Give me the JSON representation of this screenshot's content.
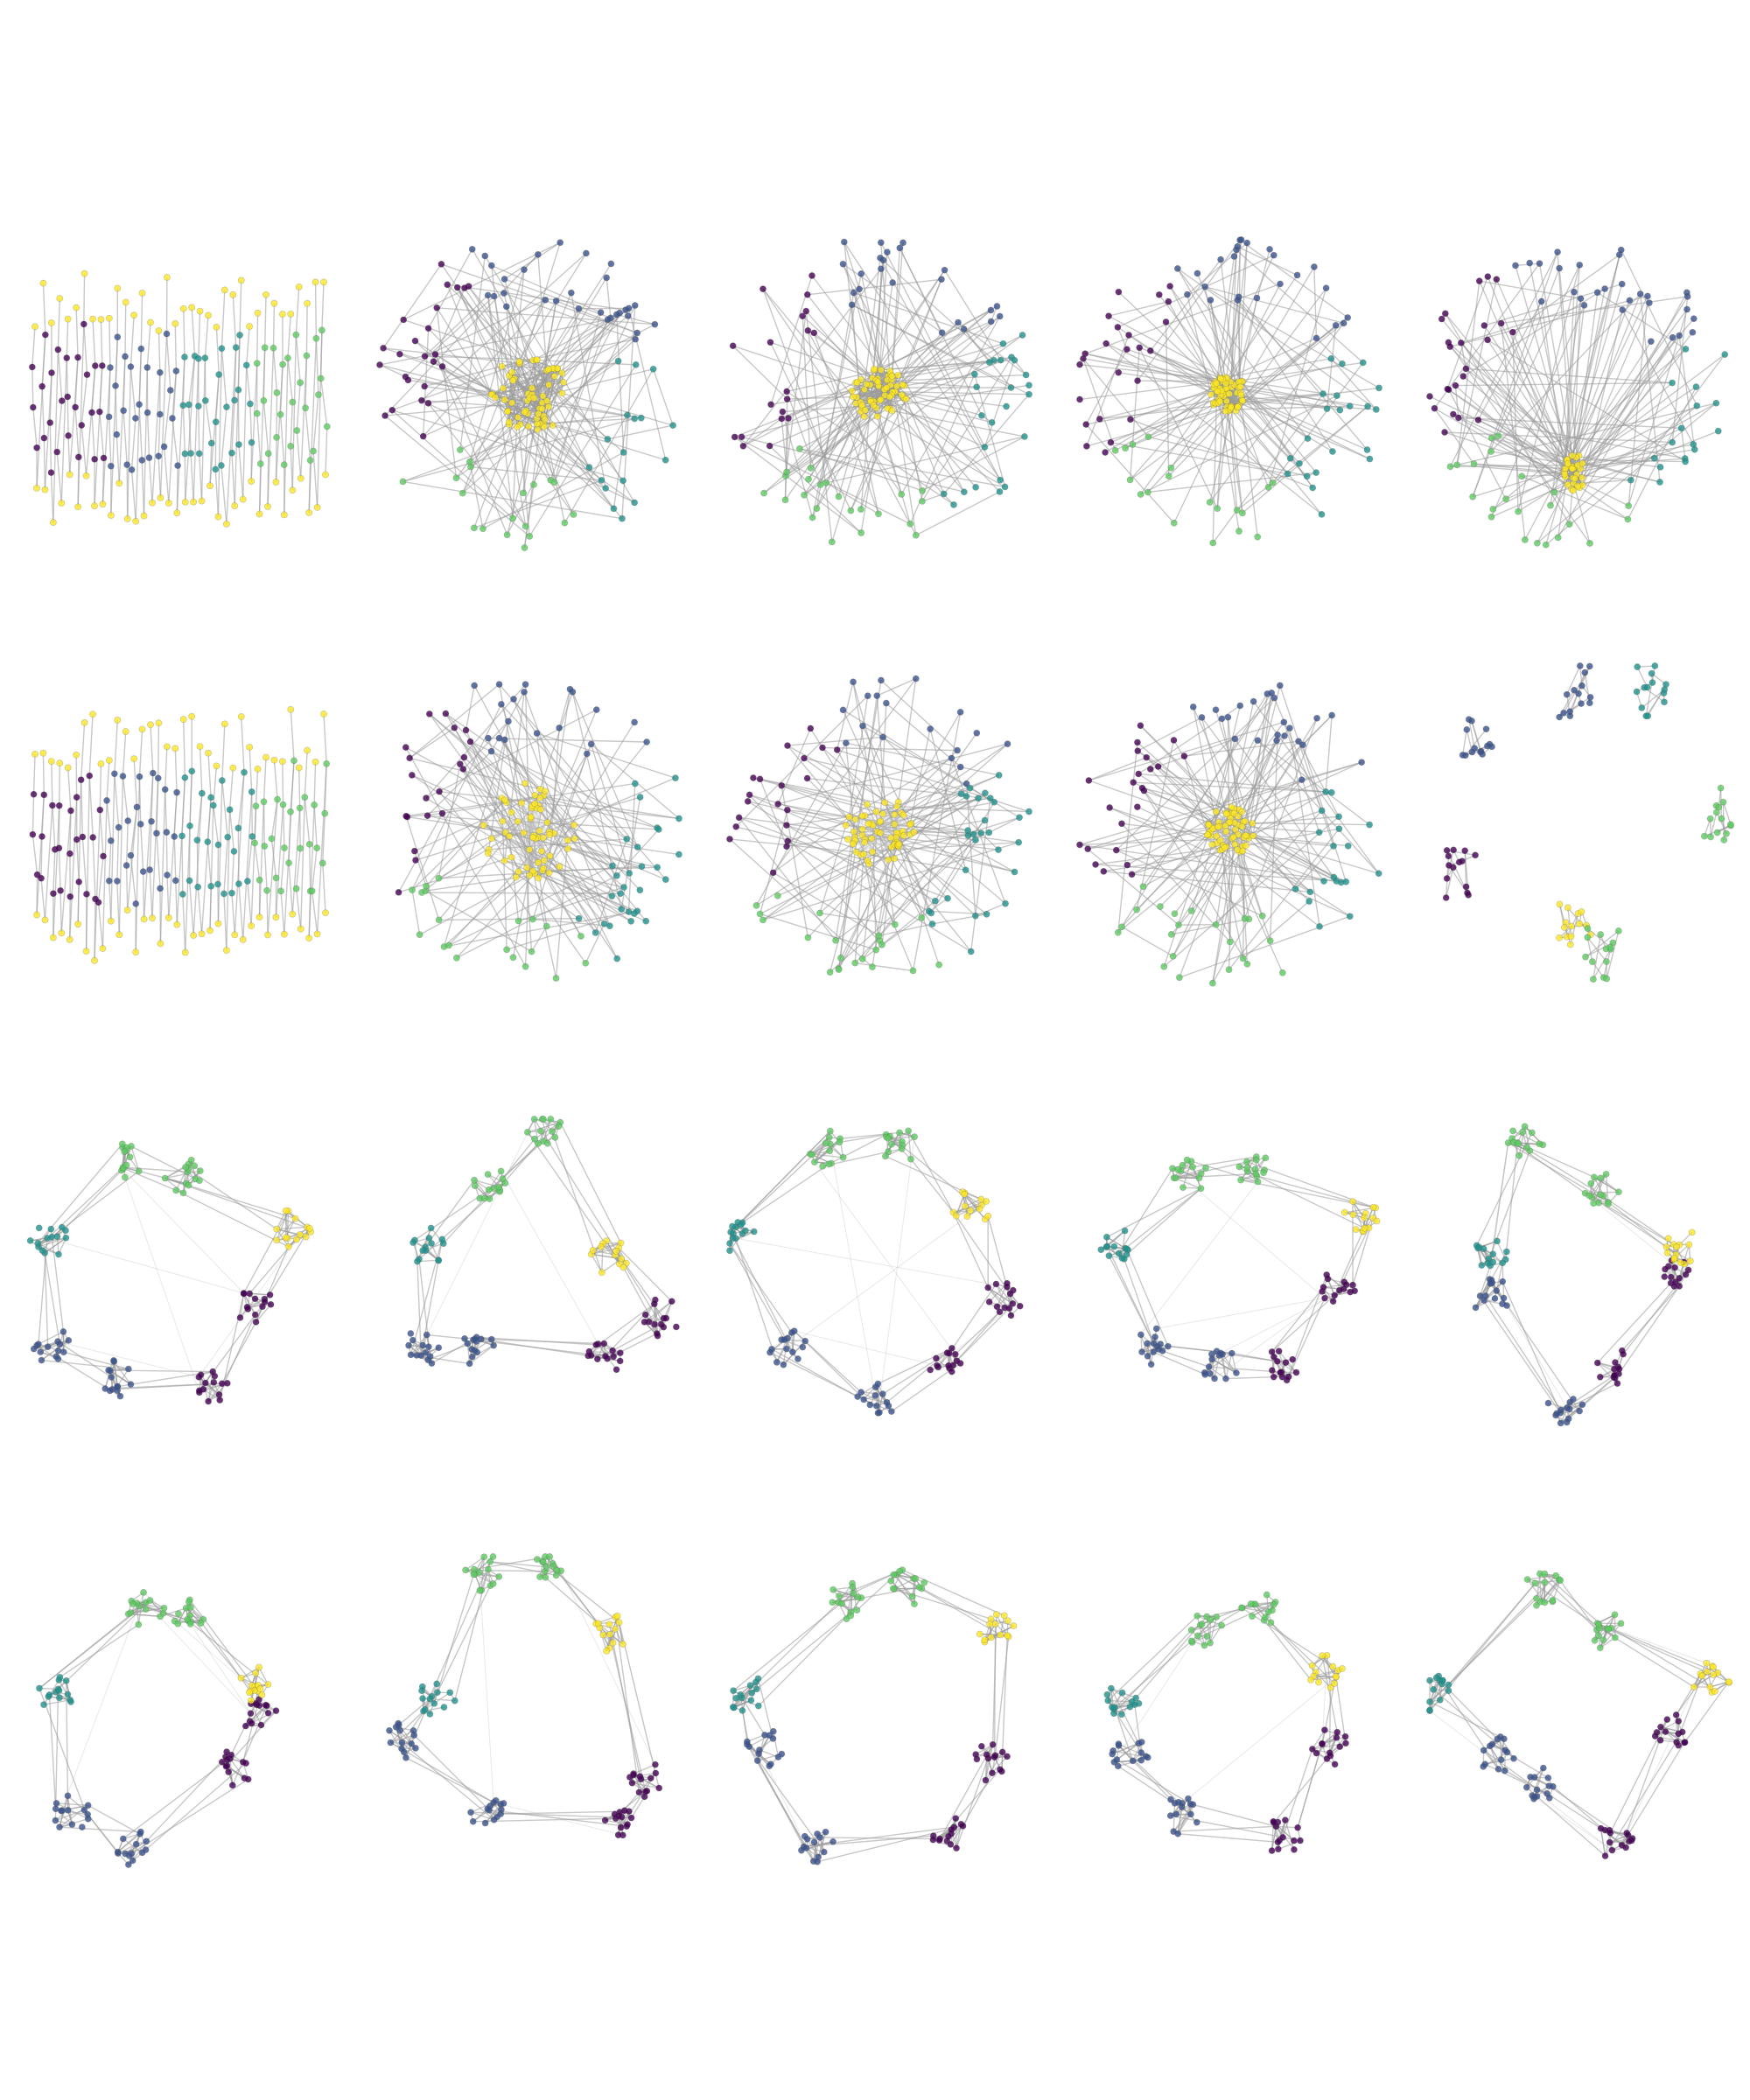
{
  "figure": {
    "rows": 4,
    "cols": 5,
    "colors": [
      "#440154",
      "#3b528b",
      "#21918c",
      "#5ec962",
      "#fde725"
    ],
    "panels": [
      {
        "style": "zigzag",
        "seed": 11
      },
      {
        "style": "hub",
        "seed": 21,
        "core": "loose"
      },
      {
        "style": "hub",
        "seed": 31,
        "core": "medium"
      },
      {
        "style": "hub",
        "seed": 41,
        "core": "tight"
      },
      {
        "style": "fan",
        "seed": 51
      },
      {
        "style": "zigzag",
        "seed": 12
      },
      {
        "style": "hub",
        "seed": 22,
        "core": "dense-loose"
      },
      {
        "style": "hub",
        "seed": 32,
        "core": "dense-medium"
      },
      {
        "style": "hub",
        "seed": 42,
        "core": "dense-tight"
      },
      {
        "style": "islands",
        "seed": 52
      },
      {
        "style": "clusters",
        "seed": 61
      },
      {
        "style": "clusters",
        "seed": 62
      },
      {
        "style": "clusters",
        "seed": 63
      },
      {
        "style": "clusters",
        "seed": 64
      },
      {
        "style": "clusters",
        "seed": 65
      },
      {
        "style": "clusters",
        "seed": 71
      },
      {
        "style": "clusters",
        "seed": 72
      },
      {
        "style": "clusters",
        "seed": 73
      },
      {
        "style": "clusters",
        "seed": 74
      },
      {
        "style": "clusters",
        "seed": 75
      }
    ]
  }
}
